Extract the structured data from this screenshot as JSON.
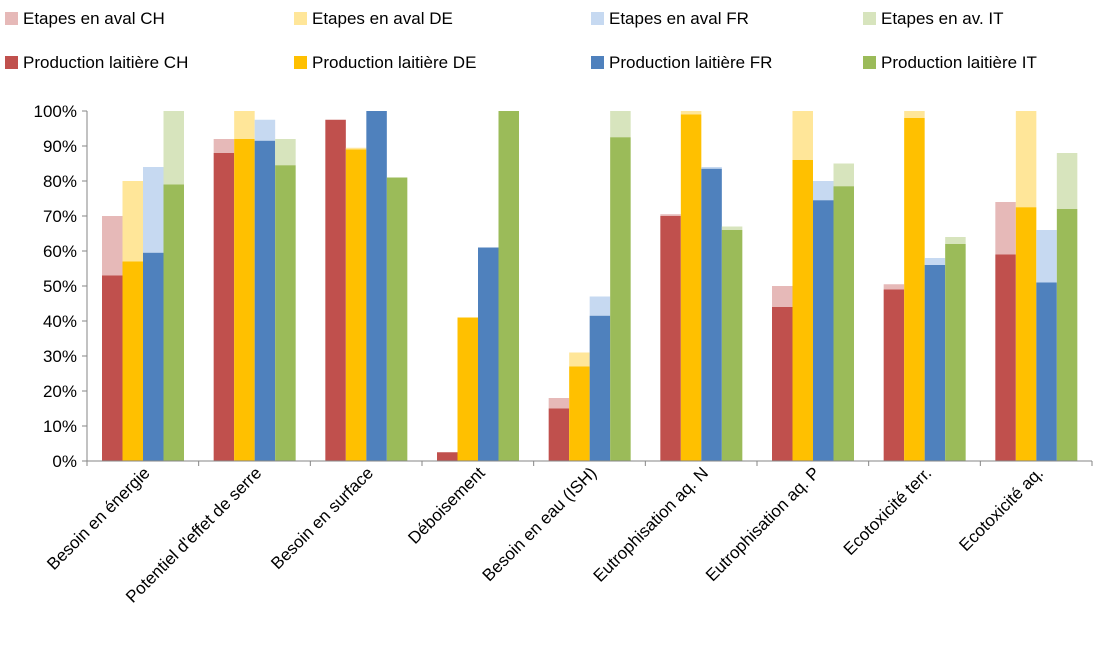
{
  "chart_data": {
    "type": "bar",
    "stacked_pairs": true,
    "categories": [
      "Besoin en énergie",
      "Potentiel d'effet de serre",
      "Besoin en surface",
      "Déboisement",
      "Besoin en eau (ISH)",
      "Eutrophisation aq. N",
      "Eutrophisation aq. P",
      "Ecotoxicité terr.",
      "Ecotoxicité aq."
    ],
    "ylim": [
      0,
      100
    ],
    "yticks": [
      "0%",
      "10%",
      "20%",
      "30%",
      "40%",
      "50%",
      "60%",
      "70%",
      "80%",
      "90%",
      "100%"
    ],
    "legend": [
      {
        "name": "Etapes en aval CH",
        "color": "#E6B9B8"
      },
      {
        "name": "Etapes en aval DE",
        "color": "#FFE699"
      },
      {
        "name": "Etapes en aval FR",
        "color": "#C6D9F1"
      },
      {
        "name": "Etapes en av. IT",
        "color": "#D7E4BD"
      },
      {
        "name": "Production laitière CH",
        "color": "#C0504D"
      },
      {
        "name": "Production laitière DE",
        "color": "#FFC000"
      },
      {
        "name": "Production laitière FR",
        "color": "#4F81BD"
      },
      {
        "name": "Production laitière IT",
        "color": "#9BBB59"
      }
    ],
    "groups": [
      {
        "country": "CH",
        "base_color": "#C0504D",
        "top_color": "#E6B9B8",
        "production": [
          53,
          88,
          97.5,
          2.5,
          15,
          70,
          44,
          49,
          59
        ],
        "total": [
          70,
          92,
          97.5,
          2.5,
          18,
          70.5,
          50,
          50.5,
          74
        ]
      },
      {
        "country": "DE",
        "base_color": "#FFC000",
        "top_color": "#FFE699",
        "production": [
          57,
          92,
          89,
          41,
          27,
          99,
          86,
          98,
          72.5
        ],
        "total": [
          80,
          100,
          89.5,
          41,
          31,
          100,
          100,
          100,
          100
        ]
      },
      {
        "country": "FR",
        "base_color": "#4F81BD",
        "top_color": "#C6D9F1",
        "production": [
          59.5,
          91.5,
          100,
          61,
          41.5,
          83.5,
          74.5,
          56,
          51
        ],
        "total": [
          84,
          97.5,
          100,
          61,
          47,
          84,
          80,
          58,
          66
        ]
      },
      {
        "country": "IT",
        "base_color": "#9BBB59",
        "top_color": "#D7E4BD",
        "production": [
          79,
          84.5,
          81,
          100,
          92.5,
          66,
          78.5,
          62,
          72
        ],
        "total": [
          100,
          92,
          81,
          100,
          100,
          67,
          85,
          64,
          88
        ]
      }
    ]
  }
}
